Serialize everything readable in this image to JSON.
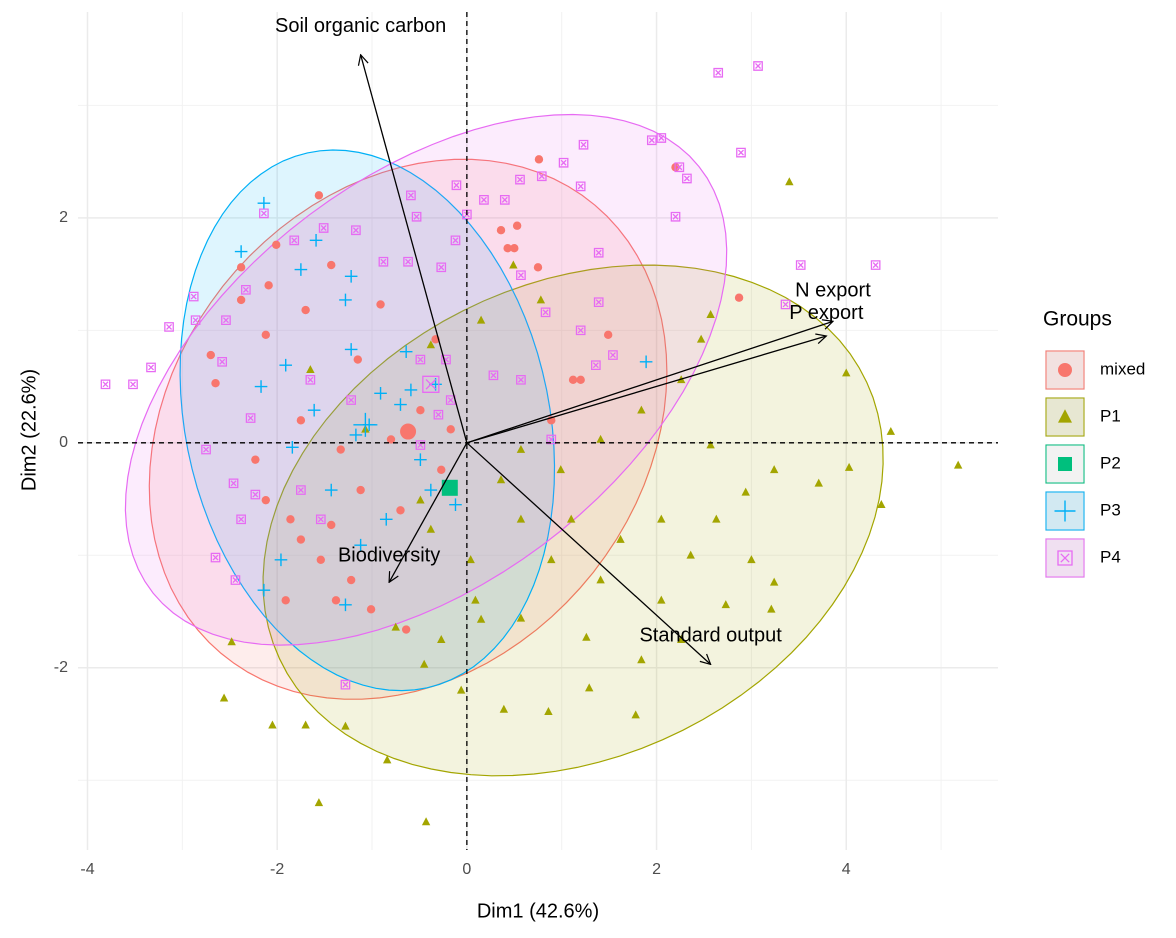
{
  "chart_data": {
    "type": "scatter",
    "x_label": "Dim1 (42.6%)",
    "y_label": "Dim2 (22.6%)",
    "xlim": [
      -4.1,
      5.6
    ],
    "ylim": [
      -3.62,
      3.83
    ],
    "xticks": [
      -4,
      -2,
      0,
      2,
      4
    ],
    "yticks": [
      -2,
      0,
      2
    ],
    "grid": true,
    "minor_grid": true,
    "reference_lines": {
      "x": 0,
      "y": 0
    },
    "legend_title": "Groups",
    "legend_position": "right",
    "series": [
      {
        "name": "mixed",
        "color": "#F8766D",
        "shape": "circle",
        "x": [
          0.76,
          0.53,
          0.43,
          0.5,
          0.75,
          -1.56,
          -2.01,
          -2.09,
          -2.38,
          -2.7,
          -2.65,
          -2.12,
          -1.7,
          -1.43,
          -1.15,
          -0.91,
          1.2,
          1.49,
          2.87,
          2.2,
          1.12,
          -2.23,
          -2.12,
          -1.86,
          -1.43,
          -1.75,
          -1.54,
          -1.22,
          -0.64,
          -1.01,
          -1.38,
          -1.91,
          -1.12,
          -0.7,
          -0.27,
          -0.33,
          -0.49,
          -0.17,
          0.89,
          -1.33,
          -0.8,
          -1.75,
          -2.38,
          0.36
        ],
        "y": [
          2.52,
          1.93,
          1.73,
          1.73,
          1.56,
          2.2,
          1.76,
          1.4,
          1.56,
          0.78,
          0.53,
          0.96,
          1.18,
          1.58,
          0.74,
          1.23,
          0.56,
          0.96,
          1.29,
          2.45,
          0.56,
          -0.15,
          -0.51,
          -0.68,
          -0.73,
          -0.86,
          -1.04,
          -1.22,
          -1.66,
          -1.48,
          -1.4,
          -1.4,
          -0.42,
          -0.6,
          -0.24,
          0.92,
          0.29,
          0.12,
          0.2,
          -0.06,
          0.03,
          0.2,
          1.27,
          1.89
        ],
        "centroid": [
          -0.62,
          0.1
        ],
        "ellipse": {
          "cx": -0.62,
          "cy": 0.12,
          "a": 2.87,
          "b": 2.23,
          "angle": 29.5
        }
      },
      {
        "name": "P1",
        "color": "#A3A500",
        "shape": "triangle",
        "x": [
          3.4,
          0.49,
          0.78,
          0.15,
          -0.38,
          4.47,
          5.18,
          4.37,
          4.03,
          3.71,
          4.0,
          3.24,
          2.94,
          2.63,
          2.36,
          2.05,
          1.62,
          1.41,
          1.1,
          0.99,
          1.41,
          1.84,
          2.26,
          2.47,
          2.57,
          3.24,
          3.21,
          2.73,
          2.26,
          1.84,
          1.29,
          0.86,
          0.39,
          -0.06,
          1.78,
          1.26,
          0.57,
          0.15,
          -0.27,
          -0.45,
          -0.75,
          -1.56,
          -0.43,
          -0.84,
          -1.28,
          -1.7,
          -2.05,
          -2.56,
          -2.48,
          -1.65,
          -1.07,
          -0.49,
          0.36,
          0.57,
          0.57,
          0.89,
          0.04,
          2.05,
          2.57,
          3.0,
          0.09,
          -0.38
        ],
        "y": [
          2.32,
          1.58,
          1.27,
          1.09,
          0.87,
          0.1,
          -0.2,
          -0.55,
          -0.22,
          -0.36,
          0.62,
          -0.24,
          -0.44,
          -0.68,
          -1.0,
          -0.68,
          -0.86,
          -1.22,
          -0.68,
          -0.24,
          0.03,
          0.29,
          0.56,
          0.92,
          1.14,
          -1.24,
          -1.48,
          -1.44,
          -1.75,
          -1.93,
          -2.18,
          -2.39,
          -2.37,
          -2.2,
          -2.42,
          -1.73,
          -1.56,
          -1.57,
          -1.75,
          -1.97,
          -1.64,
          -3.2,
          -3.37,
          -2.82,
          -2.52,
          -2.51,
          -2.51,
          -2.27,
          -1.77,
          0.65,
          0.12,
          -0.51,
          -0.33,
          -0.06,
          -0.68,
          -1.04,
          -1.04,
          -1.4,
          -0.02,
          -1.04,
          -1.4,
          -0.77
        ],
        "ellipse": {
          "cx": 1.12,
          "cy": -0.69,
          "a": 3.35,
          "b": 2.15,
          "angle": 16.5
        }
      },
      {
        "name": "P2",
        "color": "#00BF7D",
        "shape": "square",
        "x": [],
        "y": [],
        "centroid": [
          -0.18,
          -0.4
        ]
      },
      {
        "name": "P3",
        "color": "#00B0F6",
        "shape": "plus",
        "x": [
          -2.14,
          -2.38,
          -1.59,
          -1.75,
          -1.22,
          -1.28,
          -1.22,
          -0.64,
          -0.91,
          -1.91,
          -2.17,
          -1.61,
          -1.84,
          -1.17,
          -1.03,
          -0.7,
          -0.33,
          1.89,
          -0.85,
          -1.12,
          -1.28,
          -2.14,
          -1.96,
          -1.43,
          -0.38,
          -0.12,
          -0.49,
          -0.59
        ],
        "y": [
          2.13,
          1.7,
          1.8,
          1.54,
          1.48,
          1.27,
          0.83,
          0.81,
          0.44,
          0.69,
          0.5,
          0.29,
          -0.04,
          0.07,
          0.16,
          0.34,
          0.52,
          0.72,
          -0.68,
          -0.91,
          -1.44,
          -1.31,
          -1.04,
          -0.42,
          -0.42,
          -0.55,
          -0.15,
          0.47
        ],
        "centroid": [
          -1.07,
          0.16
        ],
        "ellipse": {
          "cx": -1.05,
          "cy": 0.2,
          "a": 2.47,
          "b": 1.89,
          "angle": -69
        }
      },
      {
        "name": "P4",
        "color": "#E76BF3",
        "shape": "boxx",
        "x": [
          2.65,
          3.07,
          2.89,
          1.95,
          2.05,
          2.24,
          2.32,
          2.2,
          1.39,
          1.23,
          1.02,
          1.2,
          0.79,
          0.56,
          0.4,
          0.18,
          0.0,
          -0.11,
          -0.53,
          -0.59,
          -0.12,
          -0.27,
          -0.62,
          -0.88,
          -1.17,
          -1.51,
          -1.82,
          -2.14,
          -2.33,
          -2.54,
          -2.86,
          -3.14,
          -3.33,
          -3.52,
          -3.81,
          -2.88,
          -2.58,
          -2.28,
          -2.46,
          -2.38,
          -2.65,
          -2.44,
          -1.75,
          -1.28,
          1.39,
          1.2,
          0.83,
          0.57,
          0.28,
          3.52,
          3.36,
          4.31,
          0.89,
          1.54,
          -1.22,
          -1.65,
          -0.49,
          0.57,
          1.36,
          -2.75,
          -2.23,
          -1.54,
          -0.49,
          -0.22,
          -0.17,
          -0.3
        ],
        "y": [
          3.29,
          3.35,
          2.58,
          2.69,
          2.71,
          2.45,
          2.35,
          2.01,
          1.69,
          2.65,
          2.49,
          2.28,
          2.37,
          2.34,
          2.16,
          2.16,
          2.03,
          2.29,
          2.01,
          2.2,
          1.8,
          1.56,
          1.61,
          1.61,
          1.89,
          1.91,
          1.8,
          2.04,
          1.36,
          1.09,
          1.09,
          1.03,
          0.67,
          0.52,
          0.52,
          1.3,
          0.72,
          0.22,
          -0.36,
          -0.68,
          -1.02,
          -1.22,
          -0.42,
          -2.15,
          1.25,
          1.0,
          1.16,
          0.56,
          0.6,
          1.58,
          1.23,
          1.58,
          0.03,
          0.78,
          0.38,
          0.56,
          -0.02,
          1.49,
          0.69,
          -0.06,
          -0.46,
          -0.68,
          0.74,
          0.74,
          0.38,
          0.25
        ],
        "centroid": [
          -0.38,
          0.52
        ],
        "ellipse": {
          "cx": -0.43,
          "cy": 0.56,
          "a": 3.47,
          "b": 1.89,
          "angle": 29
        }
      }
    ],
    "arrows": [
      {
        "label": "Soil organic carbon",
        "x": -1.12,
        "y": 3.45
      },
      {
        "label": "Biodiversity",
        "x": -0.82,
        "y": -1.24
      },
      {
        "label": "Standard output",
        "x": 2.57,
        "y": -1.97
      },
      {
        "label": "N export",
        "x": 3.86,
        "y": 1.08
      },
      {
        "label": "P export",
        "x": 3.79,
        "y": 0.95
      }
    ]
  }
}
